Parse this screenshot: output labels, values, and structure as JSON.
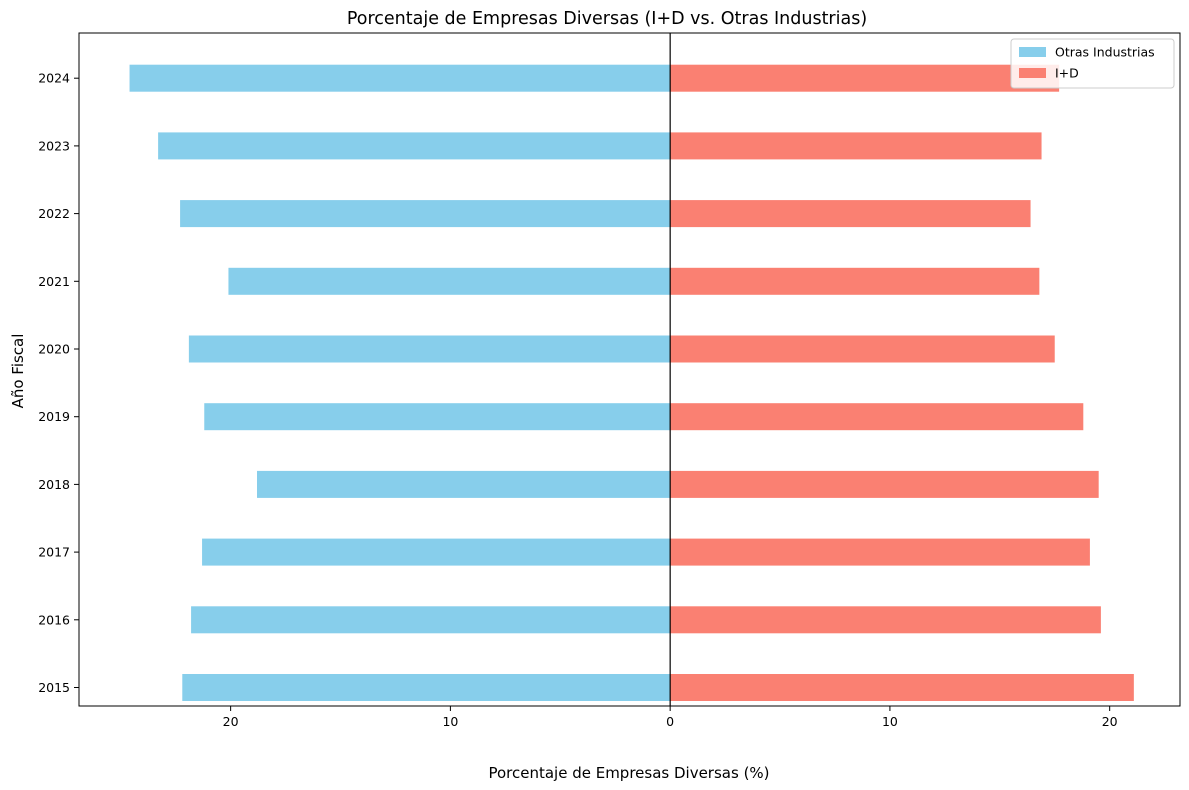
{
  "chart_data": {
    "type": "bar",
    "orientation": "horizontal-diverging",
    "title": "Porcentaje de Empresas Diversas (I+D vs. Otras Industrias)",
    "xlabel": "Porcentaje de Empresas Diversas (%)",
    "ylabel": "Año Fiscal",
    "categories": [
      "2015",
      "2016",
      "2017",
      "2018",
      "2019",
      "2020",
      "2021",
      "2022",
      "2023",
      "2024"
    ],
    "x_ticks": [
      {
        "value": -20,
        "label": "20"
      },
      {
        "value": -10,
        "label": "10"
      },
      {
        "value": 0,
        "label": "0"
      },
      {
        "value": 10,
        "label": "10"
      },
      {
        "value": 20,
        "label": "20"
      }
    ],
    "xlim": [
      -26.9,
      23.2
    ],
    "grid": false,
    "legend_position": "top-right",
    "series": [
      {
        "name": "Otras Industrias",
        "side": "left",
        "color": "#87CEEB",
        "values": [
          22.2,
          21.8,
          21.3,
          18.8,
          21.2,
          21.9,
          20.1,
          22.3,
          23.3,
          24.6
        ]
      },
      {
        "name": "I+D",
        "side": "right",
        "color": "#FA8072",
        "values": [
          21.1,
          19.6,
          19.1,
          19.5,
          18.8,
          17.5,
          16.8,
          16.4,
          16.9,
          17.7
        ]
      }
    ]
  }
}
